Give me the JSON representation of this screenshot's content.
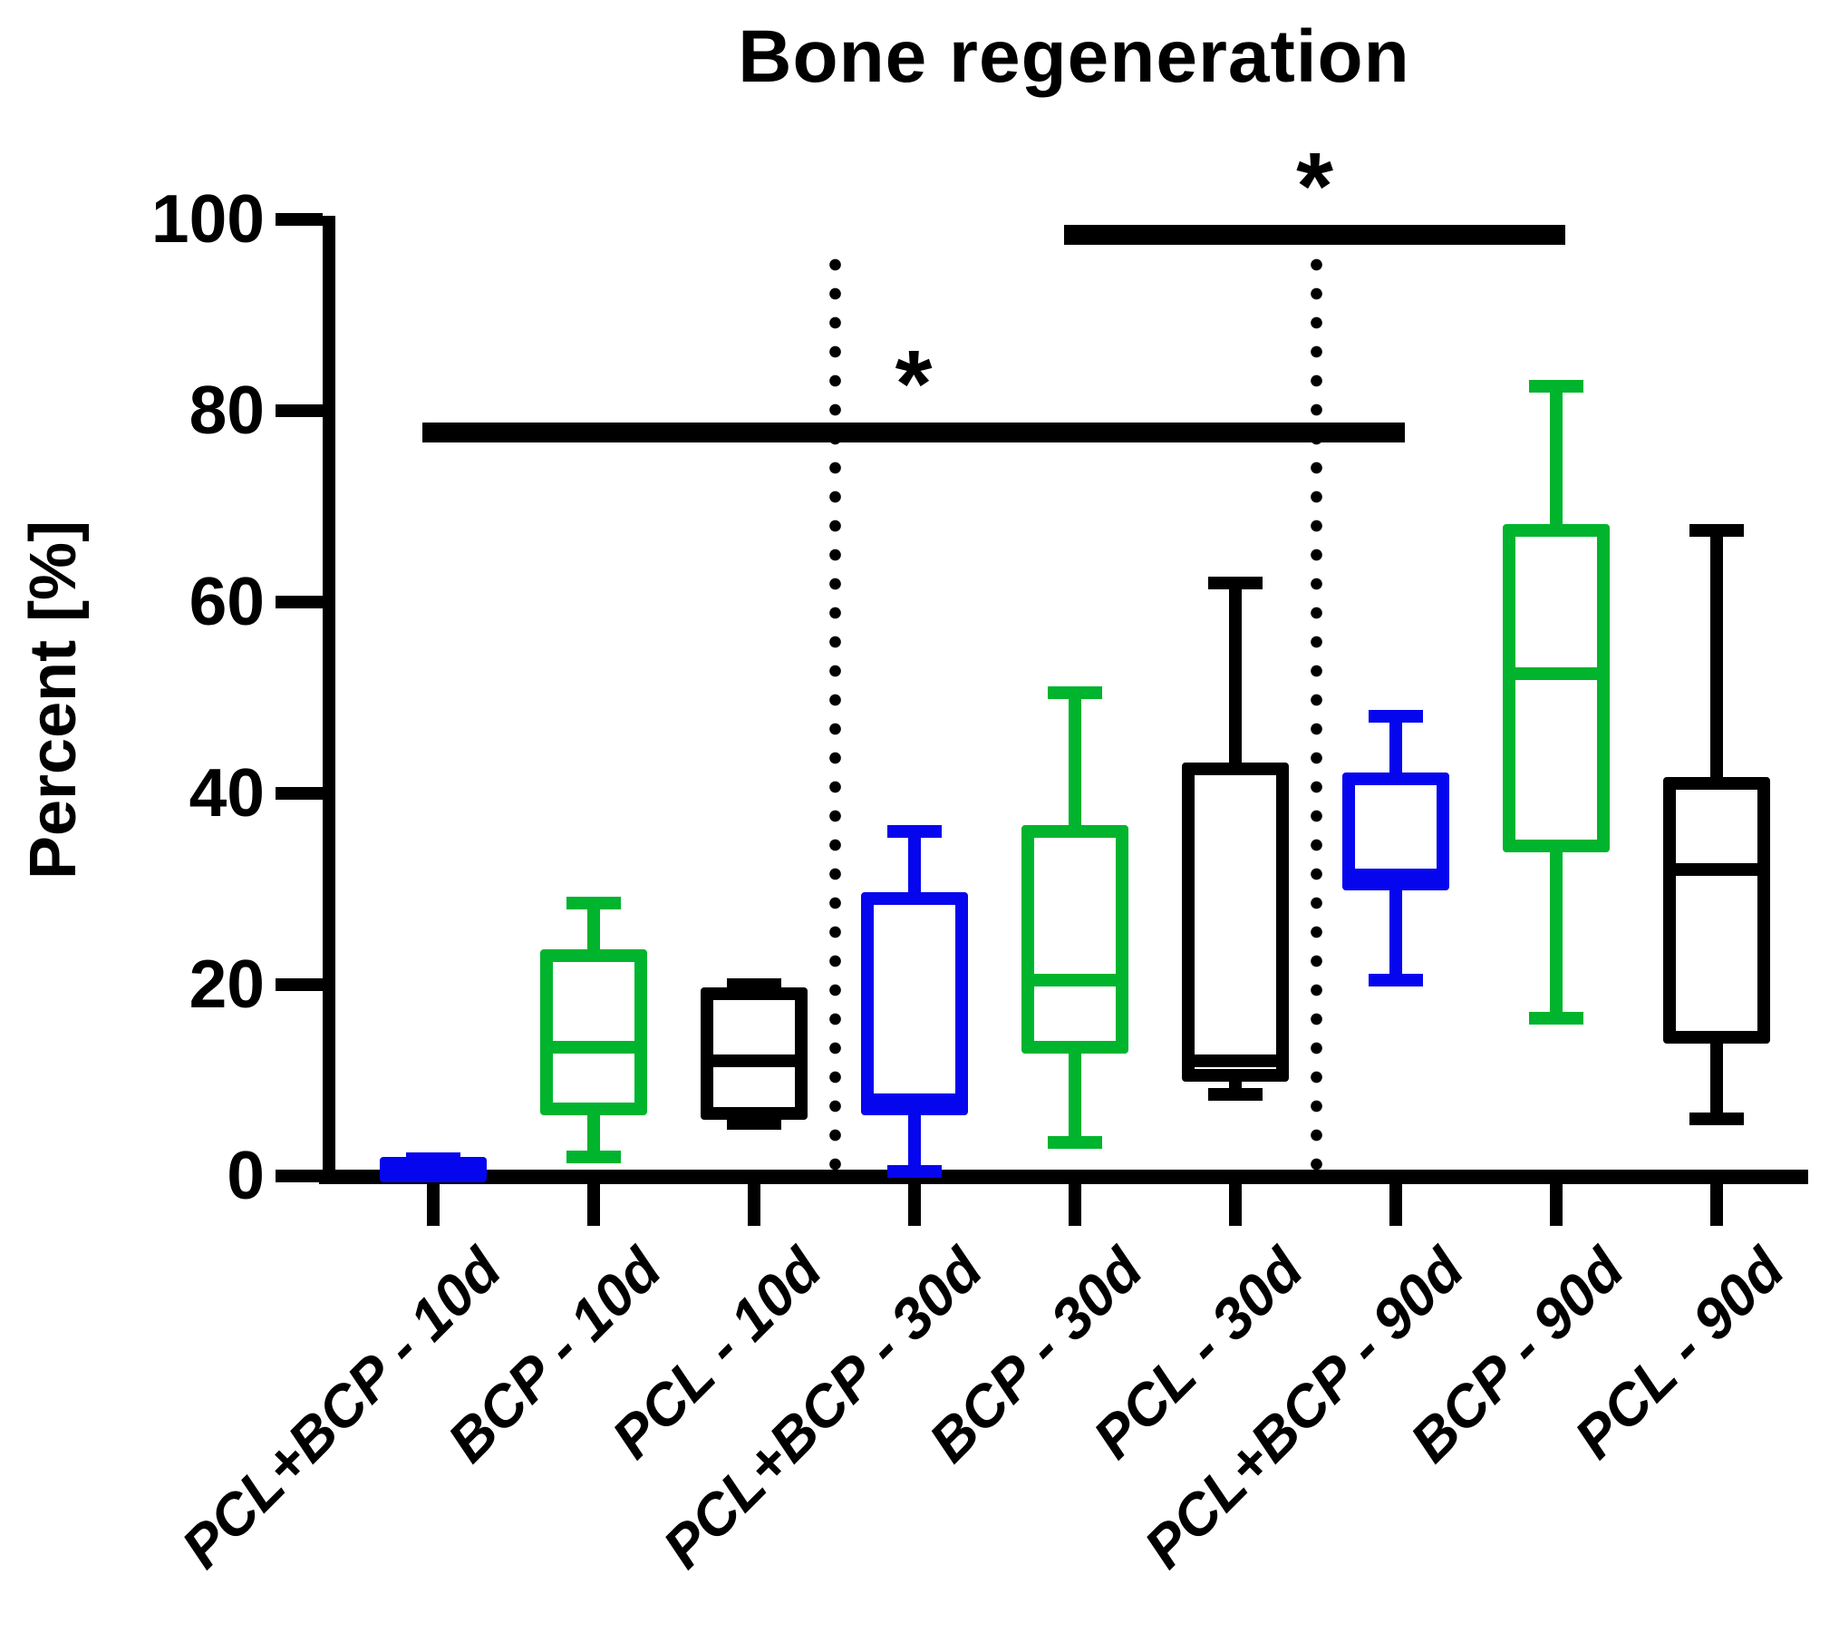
{
  "title": "Bone regeneration",
  "y_axis": {
    "label": "Percent [%]"
  },
  "colors": {
    "pcl_bcp_blue": "#0606ee",
    "bcp_green": "#00b42d",
    "pcl_black": "#000000"
  },
  "chart_data": {
    "type": "boxplot",
    "title": "Bone regeneration",
    "xlabel": "",
    "ylabel": "Percent [%]",
    "ylim": [
      0,
      100
    ],
    "yticks": [
      0,
      20,
      40,
      60,
      80,
      100
    ],
    "grid": false,
    "legend": "none",
    "categories": [
      "PCL+BCP - 10d",
      "BCP - 10d",
      "PCL - 10d",
      "PCL+BCP - 30d",
      "BCP - 30d",
      "PCL - 30d",
      "PCL+BCP - 90d",
      "BCP - 90d",
      "PCL - 90d"
    ],
    "series": [
      {
        "name": "PCL+BCP - 10d",
        "color": "#0606ee",
        "whisker_min": 0.1,
        "q1": 0.3,
        "median": 0.8,
        "q3": 1.3,
        "whisker_max": 1.8
      },
      {
        "name": "BCP - 10d",
        "color": "#00b42d",
        "whisker_min": 2.0,
        "q1": 7.0,
        "median": 13.5,
        "q3": 23.0,
        "whisker_max": 28.5
      },
      {
        "name": "PCL - 10d",
        "color": "#000000",
        "whisker_min": 5.5,
        "q1": 6.5,
        "median": 12.0,
        "q3": 19.0,
        "whisker_max": 20.0
      },
      {
        "name": "PCL+BCP - 30d",
        "color": "#0606ee",
        "whisker_min": 0.5,
        "q1": 7.0,
        "median": 8.0,
        "q3": 29.0,
        "whisker_max": 36.0
      },
      {
        "name": "BCP - 30d",
        "color": "#00b42d",
        "whisker_min": 3.5,
        "q1": 13.5,
        "median": 20.5,
        "q3": 36.0,
        "whisker_max": 50.5
      },
      {
        "name": "PCL - 30d",
        "color": "#000000",
        "whisker_min": 8.5,
        "q1": 10.5,
        "median": 12.0,
        "q3": 42.5,
        "whisker_max": 62.0
      },
      {
        "name": "PCL+BCP - 90d",
        "color": "#0606ee",
        "whisker_min": 20.5,
        "q1": 30.5,
        "median": 31.5,
        "q3": 41.5,
        "whisker_max": 48.0
      },
      {
        "name": "BCP - 90d",
        "color": "#00b42d",
        "whisker_min": 16.5,
        "q1": 34.5,
        "median": 52.5,
        "q3": 67.5,
        "whisker_max": 82.5
      },
      {
        "name": "PCL - 90d",
        "color": "#000000",
        "whisker_min": 6.0,
        "q1": 14.5,
        "median": 32.0,
        "q3": 41.0,
        "whisker_max": 67.5
      }
    ],
    "group_separators_after_index": [
      2,
      5
    ],
    "significance": [
      {
        "from": "PCL+BCP - 10d",
        "to": "PCL+BCP - 90d",
        "level": 77.7,
        "label": "*"
      },
      {
        "from": "BCP - 30d",
        "to": "BCP - 90d",
        "level": 98.4,
        "label": "*"
      }
    ]
  }
}
